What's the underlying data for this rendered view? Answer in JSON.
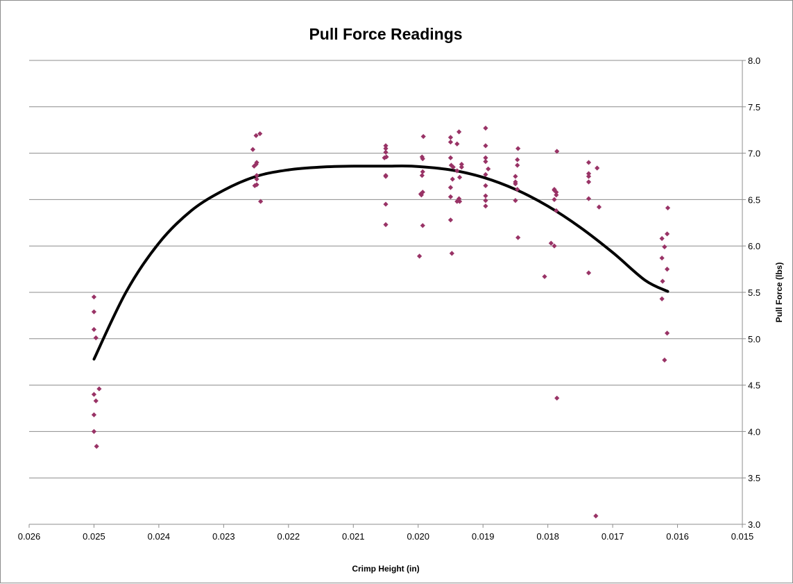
{
  "chart_data": {
    "type": "scatter",
    "title": "Pull Force Readings",
    "xlabel": "Crimp Height (in)",
    "ylabel": "Pull Force (lbs)",
    "x_reversed": true,
    "y_axis_side": "right",
    "xlim": [
      0.015,
      0.026
    ],
    "ylim": [
      3.0,
      8.0
    ],
    "x_ticks": [
      "0.026",
      "0.025",
      "0.024",
      "0.023",
      "0.022",
      "0.021",
      "0.020",
      "0.019",
      "0.018",
      "0.017",
      "0.016",
      "0.015"
    ],
    "y_ticks": [
      "3.0",
      "3.5",
      "4.0",
      "4.5",
      "5.0",
      "5.5",
      "6.0",
      "6.5",
      "7.0",
      "7.5",
      "8.0"
    ],
    "grid": "horizontal",
    "marker_color": "#993366",
    "trend_color": "#000000",
    "trendline": {
      "type": "polynomial-2",
      "points": [
        [
          0.025,
          4.78
        ],
        [
          0.0245,
          5.51
        ],
        [
          0.024,
          6.03
        ],
        [
          0.0235,
          6.38
        ],
        [
          0.023,
          6.6
        ],
        [
          0.0225,
          6.75
        ],
        [
          0.022,
          6.82
        ],
        [
          0.0215,
          6.85
        ],
        [
          0.021,
          6.86
        ],
        [
          0.0205,
          6.86
        ],
        [
          0.0201,
          6.86
        ],
        [
          0.0195,
          6.82
        ],
        [
          0.019,
          6.74
        ],
        [
          0.0185,
          6.61
        ],
        [
          0.018,
          6.43
        ],
        [
          0.0175,
          6.2
        ],
        [
          0.017,
          5.93
        ],
        [
          0.0165,
          5.63
        ],
        [
          0.01615,
          5.51
        ]
      ]
    },
    "series": [
      {
        "points": [
          [
            0.025,
            5.45
          ],
          [
            0.025,
            5.29
          ],
          [
            0.025,
            5.1
          ],
          [
            0.02497,
            5.01
          ],
          [
            0.025,
            4.4
          ],
          [
            0.02497,
            4.33
          ],
          [
            0.02492,
            4.46
          ],
          [
            0.025,
            4.18
          ],
          [
            0.025,
            4.0
          ],
          [
            0.02496,
            3.84
          ],
          [
            0.02255,
            7.04
          ],
          [
            0.02253,
            6.86
          ],
          [
            0.0225,
            6.88
          ],
          [
            0.02249,
            6.9
          ],
          [
            0.0225,
            7.19
          ],
          [
            0.02244,
            7.21
          ],
          [
            0.02249,
            6.76
          ],
          [
            0.02252,
            6.65
          ],
          [
            0.02249,
            6.72
          ],
          [
            0.02249,
            6.66
          ],
          [
            0.02243,
            6.48
          ],
          [
            0.0205,
            7.08
          ],
          [
            0.0205,
            7.05
          ],
          [
            0.0205,
            7.01
          ],
          [
            0.02052,
            6.95
          ],
          [
            0.02049,
            6.96
          ],
          [
            0.0205,
            6.76
          ],
          [
            0.0205,
            6.75
          ],
          [
            0.0205,
            6.45
          ],
          [
            0.0205,
            6.23
          ],
          [
            0.01992,
            7.18
          ],
          [
            0.01994,
            6.96
          ],
          [
            0.01993,
            6.94
          ],
          [
            0.01993,
            6.8
          ],
          [
            0.01994,
            6.76
          ],
          [
            0.01993,
            6.58
          ],
          [
            0.01996,
            6.56
          ],
          [
            0.01995,
            6.55
          ],
          [
            0.01993,
            6.22
          ],
          [
            0.01998,
            5.89
          ],
          [
            0.0195,
            7.17
          ],
          [
            0.0195,
            7.12
          ],
          [
            0.0195,
            6.95
          ],
          [
            0.01949,
            6.87
          ],
          [
            0.01946,
            6.85
          ],
          [
            0.0195,
            6.63
          ],
          [
            0.01947,
            6.72
          ],
          [
            0.0195,
            6.53
          ],
          [
            0.0195,
            6.28
          ],
          [
            0.01948,
            5.92
          ],
          [
            0.01937,
            7.23
          ],
          [
            0.0194,
            7.1
          ],
          [
            0.0194,
            6.81
          ],
          [
            0.01933,
            6.88
          ],
          [
            0.01933,
            6.85
          ],
          [
            0.01936,
            6.74
          ],
          [
            0.01937,
            6.51
          ],
          [
            0.0194,
            6.48
          ],
          [
            0.01936,
            6.48
          ],
          [
            0.01896,
            7.27
          ],
          [
            0.01896,
            7.08
          ],
          [
            0.01896,
            6.95
          ],
          [
            0.01896,
            6.91
          ],
          [
            0.01892,
            6.83
          ],
          [
            0.01896,
            6.77
          ],
          [
            0.01896,
            6.65
          ],
          [
            0.01896,
            6.54
          ],
          [
            0.01896,
            6.49
          ],
          [
            0.01896,
            6.43
          ],
          [
            0.01846,
            7.05
          ],
          [
            0.01847,
            6.93
          ],
          [
            0.01847,
            6.87
          ],
          [
            0.0185,
            6.75
          ],
          [
            0.0185,
            6.69
          ],
          [
            0.0185,
            6.67
          ],
          [
            0.01847,
            6.61
          ],
          [
            0.0185,
            6.49
          ],
          [
            0.01846,
            6.09
          ],
          [
            0.01786,
            7.02
          ],
          [
            0.0179,
            6.61
          ],
          [
            0.01787,
            6.58
          ],
          [
            0.0179,
            6.6
          ],
          [
            0.01787,
            6.55
          ],
          [
            0.0179,
            6.5
          ],
          [
            0.01787,
            6.38
          ],
          [
            0.01795,
            6.03
          ],
          [
            0.0179,
            6.0
          ],
          [
            0.01805,
            5.67
          ],
          [
            0.01786,
            4.36
          ],
          [
            0.01737,
            6.9
          ],
          [
            0.01737,
            6.78
          ],
          [
            0.01737,
            6.75
          ],
          [
            0.01737,
            6.69
          ],
          [
            0.01737,
            6.51
          ],
          [
            0.01737,
            5.71
          ],
          [
            0.01724,
            6.84
          ],
          [
            0.01721,
            6.42
          ],
          [
            0.01726,
            3.09
          ],
          [
            0.01615,
            6.41
          ],
          [
            0.01616,
            6.13
          ],
          [
            0.01624,
            6.08
          ],
          [
            0.0162,
            5.99
          ],
          [
            0.01624,
            5.87
          ],
          [
            0.01616,
            5.75
          ],
          [
            0.01623,
            5.62
          ],
          [
            0.01624,
            5.43
          ],
          [
            0.01616,
            5.06
          ],
          [
            0.0162,
            4.77
          ]
        ]
      }
    ]
  }
}
